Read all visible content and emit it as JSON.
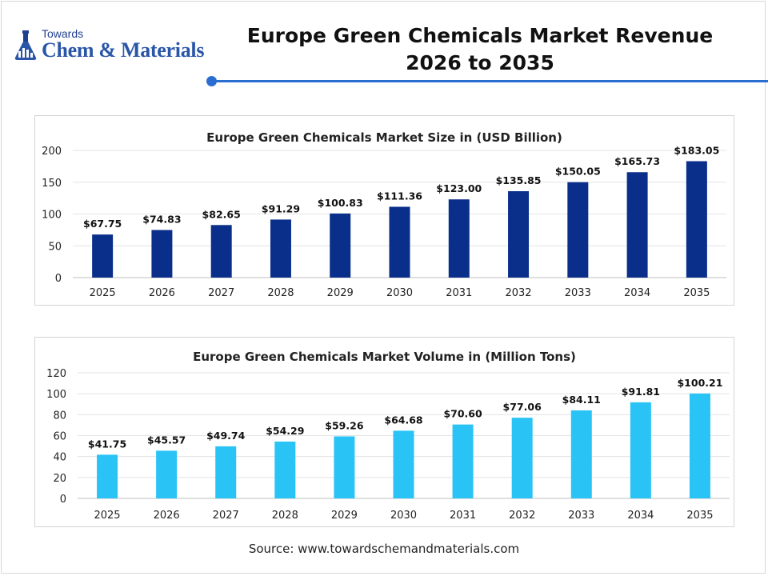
{
  "header": {
    "logo_top": "Towards",
    "logo_main": "Chem & Materials",
    "title_line1": "Europe Green Chemicals Market Revenue",
    "title_line2": "2026 to 2035",
    "accent_color": "#2a6ed1"
  },
  "chart_data": [
    {
      "type": "bar",
      "title": "Europe Green Chemicals Market Size in (USD Billion)",
      "categories": [
        "2025",
        "2026",
        "2027",
        "2028",
        "2029",
        "2030",
        "2031",
        "2032",
        "2033",
        "2034",
        "2035"
      ],
      "values": [
        67.75,
        74.83,
        82.65,
        91.29,
        100.83,
        111.36,
        123.0,
        135.85,
        150.05,
        165.73,
        183.05
      ],
      "data_labels": [
        "$67.75",
        "$74.83",
        "$82.65",
        "$91.29",
        "$100.83",
        "$111.36",
        "$123.00",
        "$135.85",
        "$150.05",
        "$165.73",
        "$183.05"
      ],
      "y_ticks": [
        0,
        50,
        100,
        150,
        200
      ],
      "ylim": [
        0,
        200
      ],
      "grid": true,
      "color": "#0a2f8a"
    },
    {
      "type": "bar",
      "title": "Europe Green Chemicals Market Volume in (Million Tons)",
      "categories": [
        "2025",
        "2026",
        "2027",
        "2028",
        "2029",
        "2030",
        "2031",
        "2032",
        "2033",
        "2034",
        "2035"
      ],
      "values": [
        41.75,
        45.57,
        49.74,
        54.29,
        59.26,
        64.68,
        70.6,
        77.06,
        84.11,
        91.81,
        100.21
      ],
      "data_labels": [
        "$41.75",
        "$45.57",
        "$49.74",
        "$54.29",
        "$59.26",
        "$64.68",
        "$70.60",
        "$77.06",
        "$84.11",
        "$91.81",
        "$100.21"
      ],
      "y_ticks": [
        0,
        20,
        40,
        60,
        80,
        100,
        120
      ],
      "ylim": [
        0,
        120
      ],
      "grid": true,
      "color": "#29c3f5"
    }
  ],
  "footer": {
    "source": "Source: www.towardschemandmaterials.com"
  }
}
